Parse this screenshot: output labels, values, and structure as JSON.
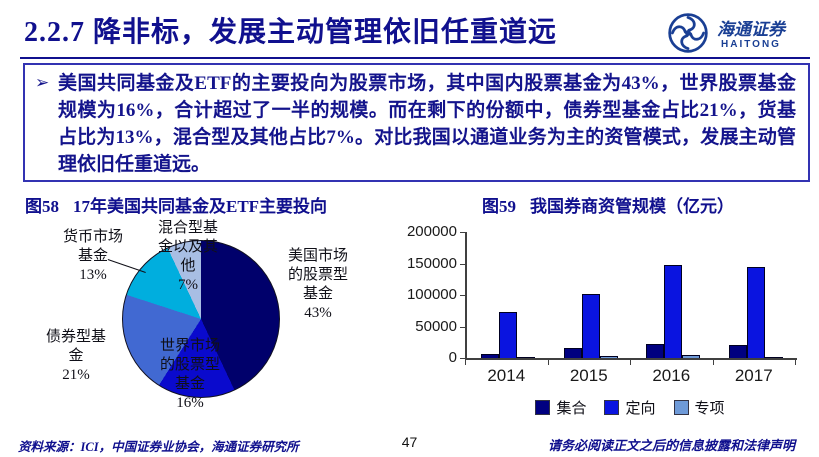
{
  "header": {
    "title": "2.2.7 降非标，发展主动管理依旧任重道远",
    "logo": {
      "cn": "海通证券",
      "en": "HAITONG"
    }
  },
  "bullet": {
    "marker": "➢",
    "text": "美国共同基金及ETF的主要投向为股票市场，其中国内股票基金为43%，世界股票基金规模为16%，合计超过了一半的规模。而在剩下的份额中，债券型基金占比21%，货基占比为13%，混合型及其他占比7%。对比我国以通道业务为主的资管模式，发展主动管理依旧任重道远。"
  },
  "figures": {
    "fig58": {
      "tag": "图58",
      "title": "17年美国共同基金及ETF主要投向"
    },
    "fig59": {
      "tag": "图59",
      "title": "我国券商资管规模（亿元）"
    }
  },
  "chart_data": [
    {
      "type": "pie",
      "title": "17年美国共同基金及ETF主要投向",
      "slices": [
        {
          "label": "美国市场的股票型基金",
          "value": 43,
          "color": "#00006B"
        },
        {
          "label": "世界市场的股票型基金",
          "value": 16,
          "color": "#0A0ACD"
        },
        {
          "label": "债券型基金",
          "value": 21,
          "color": "#4169D2"
        },
        {
          "label": "货币市场基金",
          "value": 13,
          "color": "#00AEDE"
        },
        {
          "label": "混合型基金以及其他",
          "value": 7,
          "color": "#A8BEE4"
        }
      ],
      "start_angle_deg": 0,
      "direction": "clockwise",
      "labels": {
        "us": "美国市场\n的股票型\n基金\n43%",
        "world": "世界市场\n的股票型\n基金\n16%",
        "bond": "债券型基\n金\n21%",
        "money": "货币市场\n基金\n13%",
        "hybrid": "混合型基\n金以及其\n他\n7%"
      }
    },
    {
      "type": "bar",
      "title": "我国券商资管规模（亿元）",
      "categories": [
        "2014",
        "2015",
        "2016",
        "2017"
      ],
      "series": [
        {
          "name": "集合",
          "color": "#000080",
          "values": [
            6900,
            15600,
            21900,
            21100
          ]
        },
        {
          "name": "定向",
          "color": "#0A14E0",
          "values": [
            72500,
            101600,
            146900,
            143900
          ]
        },
        {
          "name": "专项",
          "color": "#6E9AD8",
          "values": [
            1500,
            3300,
            4300,
            1900
          ]
        }
      ],
      "ylim": [
        0,
        200000
      ],
      "yticks": [
        200000,
        150000,
        100000,
        50000,
        0
      ],
      "legend_position": "bottom",
      "grid": false
    }
  ],
  "footer": {
    "source": "资料来源：ICI，中国证券业协会，海通证券研究所",
    "page": "47",
    "disclaimer": "请务必阅读正文之后的信息披露和法律声明"
  }
}
